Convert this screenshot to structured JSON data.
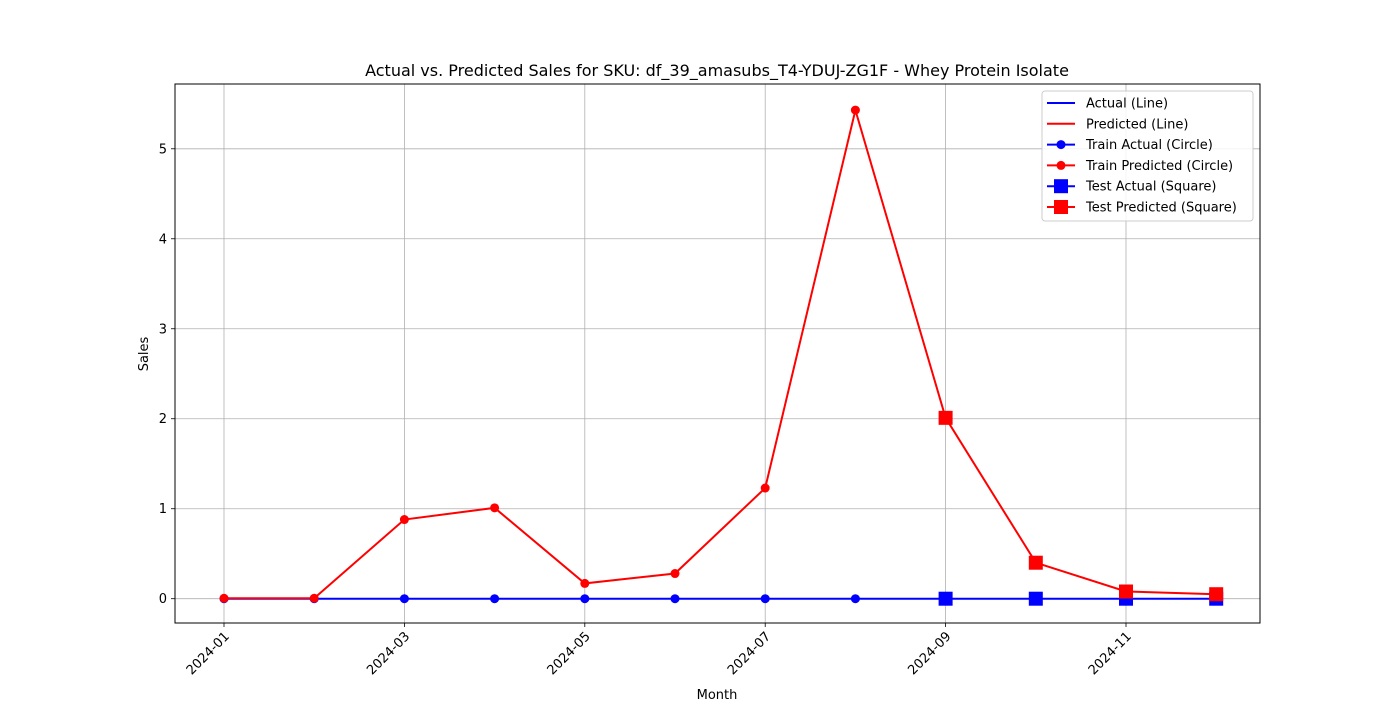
{
  "chart_data": {
    "type": "line",
    "title": "Actual vs. Predicted Sales for SKU: df_39_amasubs_T4-YDUJ-ZG1F - Whey Protein Isolate",
    "xlabel": "Month",
    "ylabel": "Sales",
    "x": [
      "2024-01",
      "2024-02",
      "2024-03",
      "2024-04",
      "2024-05",
      "2024-06",
      "2024-07",
      "2024-08",
      "2024-09",
      "2024-10",
      "2024-11",
      "2024-12"
    ],
    "x_ticks": [
      "2024-01",
      "2024-03",
      "2024-05",
      "2024-07",
      "2024-09",
      "2024-11"
    ],
    "y_ticks": [
      0,
      1,
      2,
      3,
      4,
      5
    ],
    "ylim": [
      -0.27,
      5.72
    ],
    "grid": true,
    "legend_position": "top-right",
    "train_count": 8,
    "colors": {
      "actual": "#0000ff",
      "predicted": "#ff0000",
      "grid": "#b0b0b0"
    },
    "series": [
      {
        "name": "Actual (Line)",
        "values": [
          0,
          0,
          0,
          0,
          0,
          0,
          0,
          0,
          0,
          0,
          0,
          0
        ]
      },
      {
        "name": "Predicted (Line)",
        "values": [
          0.005,
          0.005,
          0.88,
          1.01,
          0.17,
          0.28,
          1.23,
          5.43,
          2.01,
          0.4,
          0.08,
          0.05
        ]
      }
    ],
    "legend": [
      {
        "label": "Actual (Line)",
        "color": "#0000ff",
        "marker": "none"
      },
      {
        "label": "Predicted (Line)",
        "color": "#ff0000",
        "marker": "none"
      },
      {
        "label": "Train Actual (Circle)",
        "color": "#0000ff",
        "marker": "circle"
      },
      {
        "label": "Train Predicted (Circle)",
        "color": "#ff0000",
        "marker": "circle"
      },
      {
        "label": "Test Actual (Square)",
        "color": "#0000ff",
        "marker": "square"
      },
      {
        "label": "Test Predicted (Square)",
        "color": "#ff0000",
        "marker": "square"
      }
    ]
  }
}
